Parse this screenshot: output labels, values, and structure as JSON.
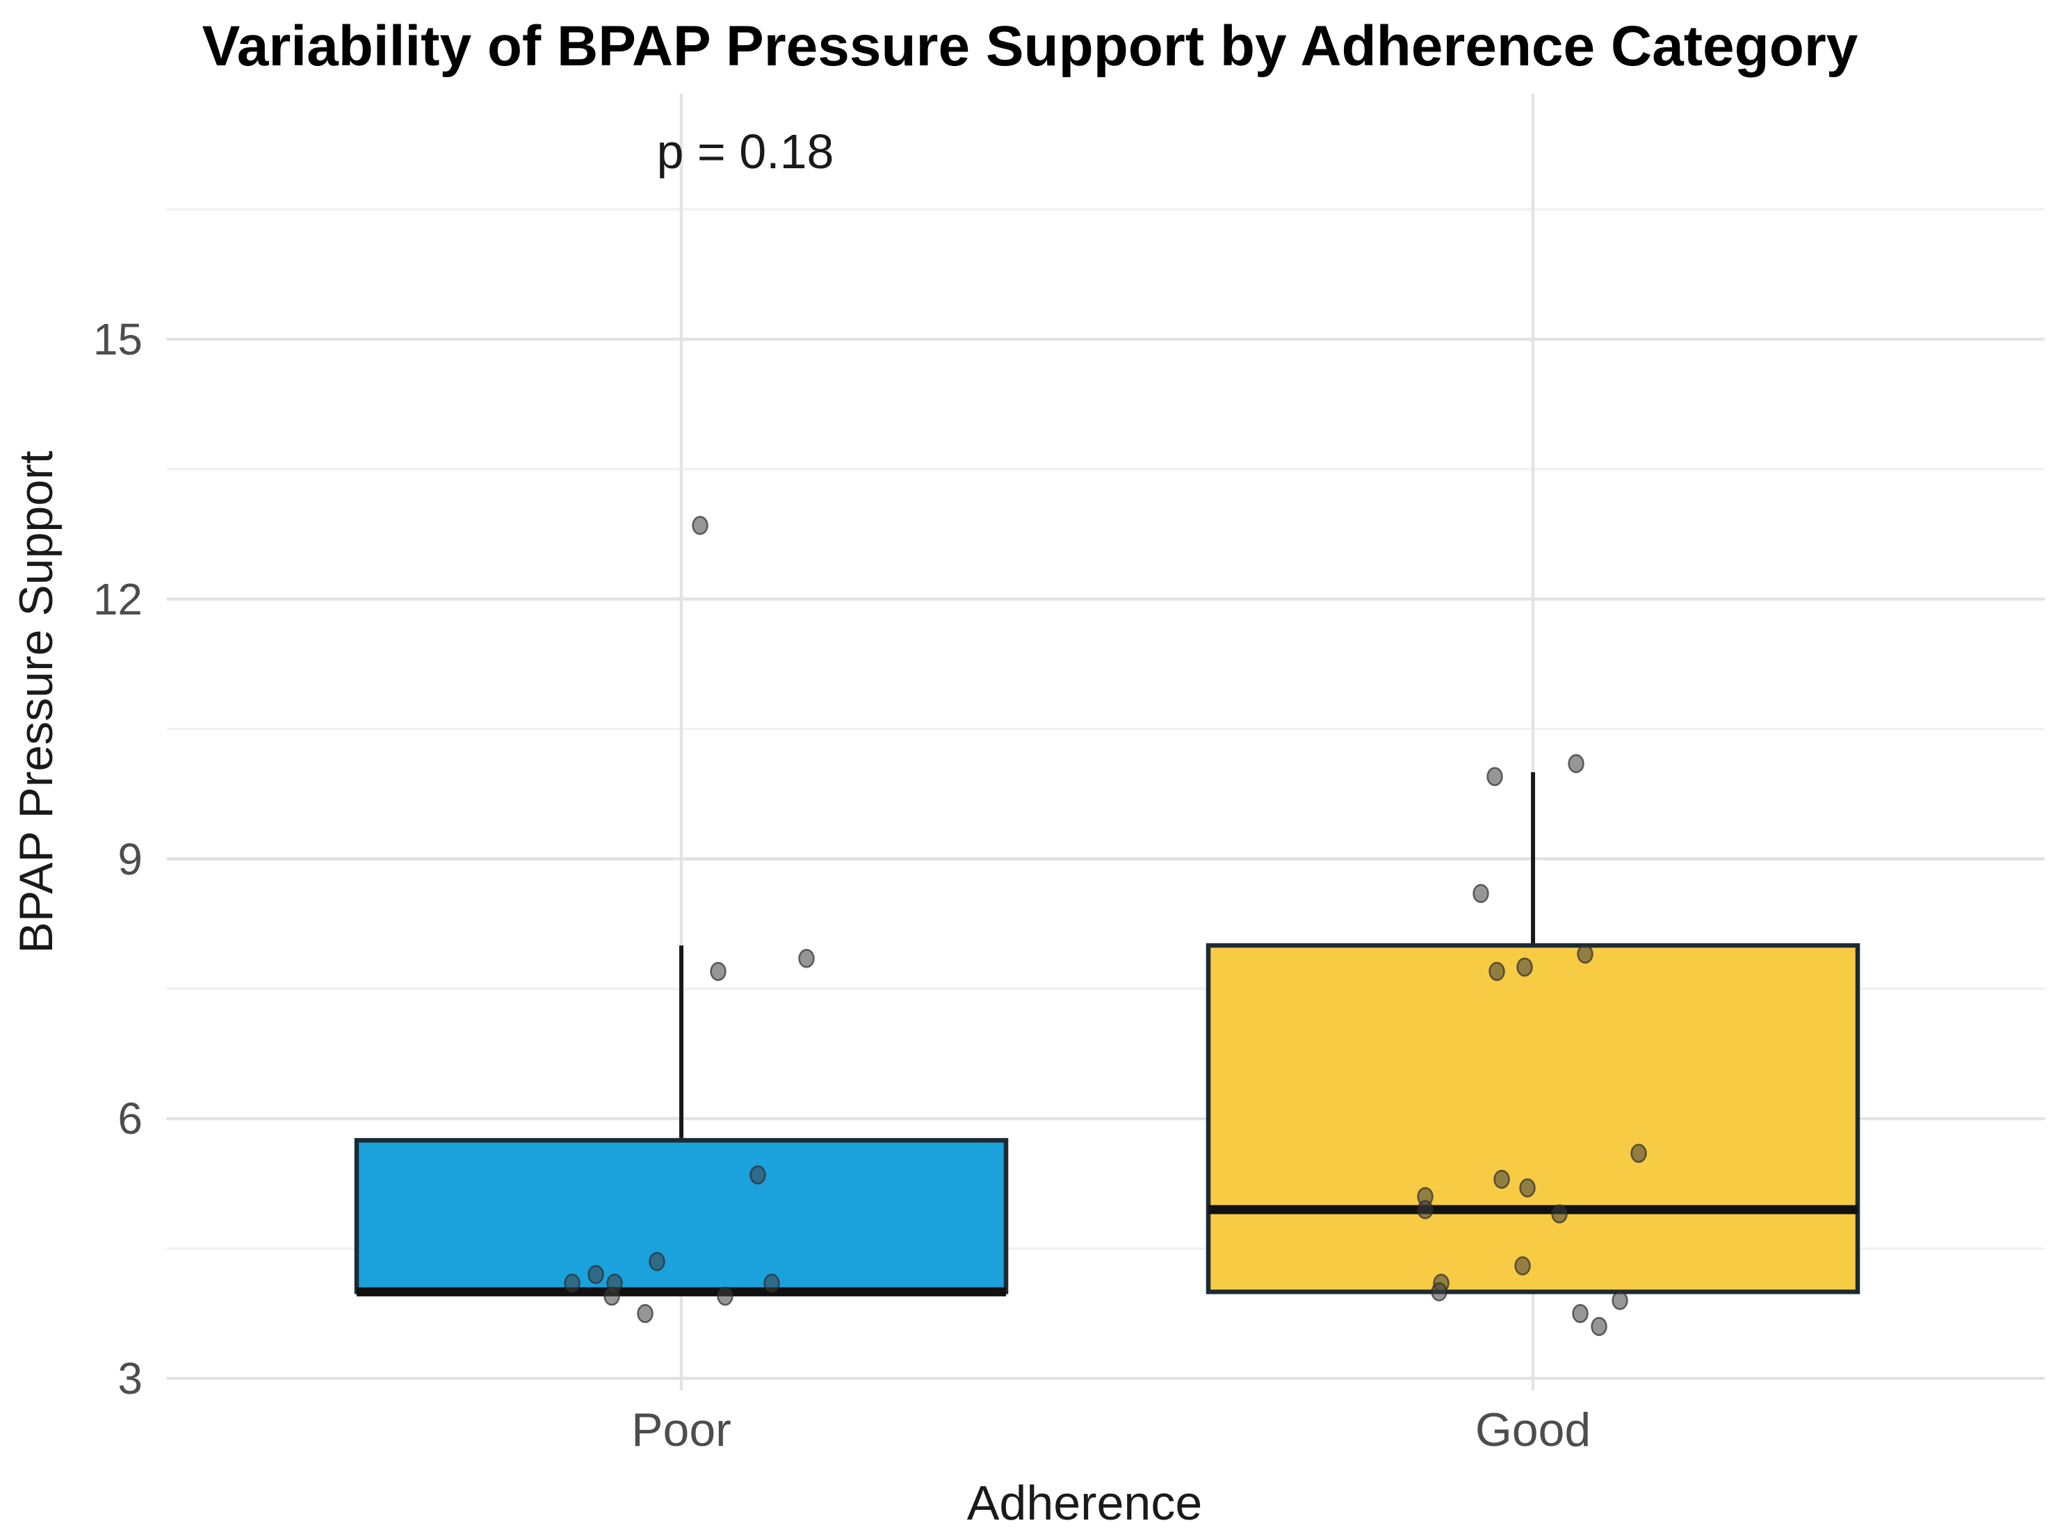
{
  "title": "Variability of BPAP Pressure Support by Adherence Category",
  "annotation": "p = 0.18",
  "axes": {
    "x_label": "Adherence",
    "y_label": "BPAP Pressure Support",
    "y_ticks": [
      3,
      6,
      9,
      12,
      15
    ],
    "y_minor_ticks": [
      4.5,
      7.5,
      10.5,
      13.5,
      16.5
    ]
  },
  "colors": {
    "poor_fill": "#1BA1DB",
    "good_fill": "#F7CB44",
    "box_stroke": "#1C2B33",
    "median_stroke": "#111111",
    "whisker_stroke": "#1a1a1a",
    "grid_major": "#e3e3e3",
    "grid_minor": "#f0f0f0",
    "point_fill": "#404040",
    "point_stroke": "#2b2b2b"
  },
  "chart_data": {
    "type": "boxplot",
    "title": "Variability of BPAP Pressure Support by Adherence Category",
    "xlabel": "Adherence",
    "ylabel": "BPAP Pressure Support",
    "ylim": [
      3,
      16.5
    ],
    "grid": "major+minor",
    "legend": "none",
    "p_value_annotation": "p = 0.18",
    "categories": [
      "Poor",
      "Good"
    ],
    "series": [
      {
        "name": "Poor",
        "fill": "#1BA1DB",
        "box": {
          "q1": 4.0,
          "median": 4.0,
          "q3": 5.75,
          "whisker_low": 4.0,
          "whisker_high": 8.0
        },
        "points": [
          {
            "v": 12.85,
            "dx": 27
          },
          {
            "v": 7.85,
            "dx": 180
          },
          {
            "v": 7.7,
            "dx": 53
          },
          {
            "v": 5.35,
            "dx": 110
          },
          {
            "v": 4.35,
            "dx": -35
          },
          {
            "v": 4.2,
            "dx": -123
          },
          {
            "v": 4.1,
            "dx": -157
          },
          {
            "v": 4.1,
            "dx": -96
          },
          {
            "v": 4.1,
            "dx": 130
          },
          {
            "v": 3.95,
            "dx": -100
          },
          {
            "v": 3.95,
            "dx": 63
          },
          {
            "v": 3.75,
            "dx": -52
          }
        ]
      },
      {
        "name": "Good",
        "fill": "#F7CB44",
        "box": {
          "q1": 4.0,
          "median": 4.95,
          "q3": 8.0,
          "whisker_low": 4.0,
          "whisker_high": 10.0
        },
        "points": [
          {
            "v": 10.1,
            "dx": 62
          },
          {
            "v": 9.95,
            "dx": -55
          },
          {
            "v": 8.6,
            "dx": -75
          },
          {
            "v": 7.9,
            "dx": 75
          },
          {
            "v": 7.75,
            "dx": -12
          },
          {
            "v": 7.7,
            "dx": -52
          },
          {
            "v": 5.6,
            "dx": 152
          },
          {
            "v": 5.3,
            "dx": -45
          },
          {
            "v": 5.2,
            "dx": -8
          },
          {
            "v": 5.1,
            "dx": -155
          },
          {
            "v": 4.95,
            "dx": -155
          },
          {
            "v": 4.9,
            "dx": 38
          },
          {
            "v": 4.3,
            "dx": -15
          },
          {
            "v": 4.1,
            "dx": -132
          },
          {
            "v": 4.0,
            "dx": -135
          },
          {
            "v": 3.9,
            "dx": 125
          },
          {
            "v": 3.75,
            "dx": 68
          },
          {
            "v": 3.6,
            "dx": 95
          }
        ]
      }
    ]
  }
}
